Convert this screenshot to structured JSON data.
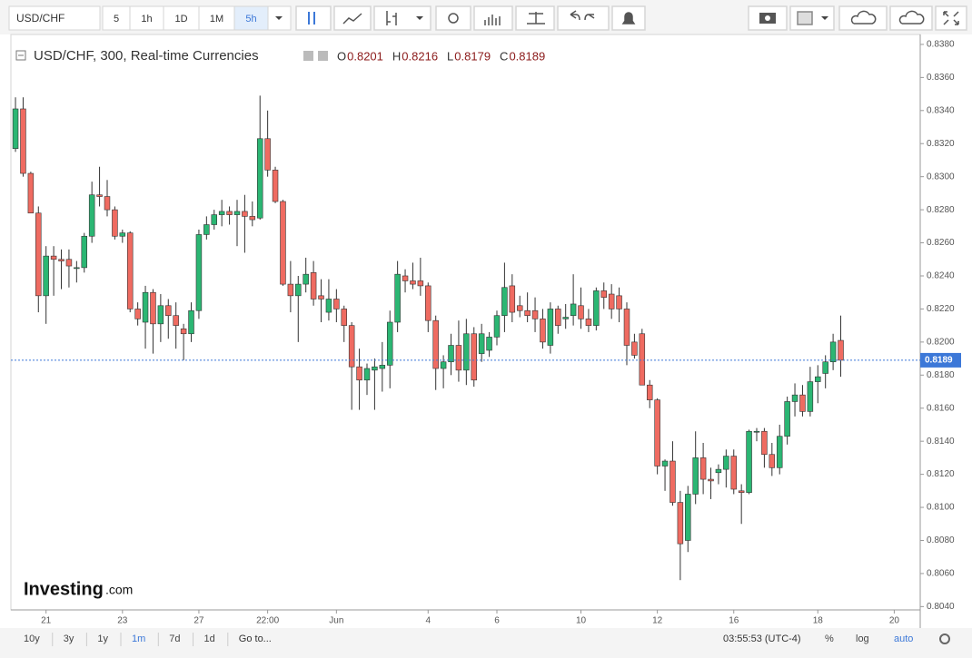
{
  "toolbar": {
    "symbol": "USD/CHF",
    "intervals": [
      "5",
      "1h",
      "1D",
      "1M",
      "5h"
    ]
  },
  "chart_data": {
    "type": "candlestick",
    "title": "USD/CHF, 300, Real-time Currencies",
    "ohlc_letters": [
      "O",
      "H",
      "L",
      "C"
    ],
    "up_color": "#2bb673",
    "down_color": "#ef6b61",
    "wick_color": "#333333",
    "price_line_color": "#3c78d8",
    "watermark": [
      "Investing",
      ".com"
    ],
    "open": [
      0.8317,
      0.8341,
      0.8302,
      0.8278,
      0.8228,
      0.8252,
      0.825,
      0.825,
      0.8245,
      0.8245,
      0.8264,
      0.8289,
      0.8288,
      0.828,
      0.8264,
      0.8266,
      0.822,
      0.8212,
      0.823,
      0.8211,
      0.8222,
      0.8216,
      0.8208,
      0.8205,
      0.8219,
      0.8265,
      0.8271,
      0.8277,
      0.8279,
      0.8277,
      0.8279,
      0.8276,
      0.8275,
      0.8323,
      0.8304,
      0.8285,
      0.8235,
      0.8228,
      0.8235,
      0.8242,
      0.8228,
      0.8218,
      0.8226,
      0.822,
      0.821,
      0.8185,
      0.8177,
      0.8183,
      0.8184,
      0.8186,
      0.8212,
      0.824,
      0.8237,
      0.8237,
      0.8234,
      0.8213,
      0.8184,
      0.8188,
      0.8198,
      0.8183,
      0.8205,
      0.8193,
      0.8195,
      0.8203,
      0.8216,
      0.8234,
      0.8222,
      0.8219,
      0.8219,
      0.8214,
      0.8198,
      0.822,
      0.8214,
      0.8216,
      0.8222,
      0.8214,
      0.821,
      0.8231,
      0.8229,
      0.8228,
      0.822,
      0.82,
      0.8205,
      0.8174,
      0.8165,
      0.8125,
      0.8128,
      0.8103,
      0.808,
      0.8108,
      0.813,
      0.8117,
      0.8121,
      0.8123,
      0.8131,
      0.811,
      0.8109,
      0.8146,
      0.8146,
      0.8132,
      0.8124,
      0.8143,
      0.8164,
      0.8168,
      0.8158,
      0.8176,
      0.8181,
      0.8188,
      0.8201
    ],
    "high": [
      0.8348,
      0.8348,
      0.8303,
      0.8282,
      0.8258,
      0.8258,
      0.8256,
      0.8256,
      0.8249,
      0.8266,
      0.8297,
      0.8306,
      0.8298,
      0.8282,
      0.8268,
      0.8267,
      0.8224,
      0.8234,
      0.8232,
      0.8229,
      0.8226,
      0.8224,
      0.8211,
      0.8224,
      0.8268,
      0.8276,
      0.828,
      0.8286,
      0.8282,
      0.8286,
      0.8289,
      0.8285,
      0.8349,
      0.834,
      0.8306,
      0.8286,
      0.8249,
      0.824,
      0.8251,
      0.8249,
      0.8238,
      0.8238,
      0.8232,
      0.8222,
      0.8212,
      0.8196,
      0.8187,
      0.819,
      0.82,
      0.8219,
      0.8249,
      0.8244,
      0.8248,
      0.8251,
      0.8236,
      0.8216,
      0.8192,
      0.8205,
      0.8213,
      0.8214,
      0.8209,
      0.8211,
      0.8206,
      0.8219,
      0.8248,
      0.8241,
      0.8228,
      0.823,
      0.8227,
      0.822,
      0.8224,
      0.8222,
      0.8223,
      0.8241,
      0.8233,
      0.822,
      0.8233,
      0.8236,
      0.8235,
      0.8233,
      0.8224,
      0.8205,
      0.8208,
      0.8177,
      0.8166,
      0.8129,
      0.814,
      0.811,
      0.8113,
      0.8146,
      0.8139,
      0.8124,
      0.8126,
      0.8135,
      0.8135,
      0.8114,
      0.8147,
      0.8148,
      0.8148,
      0.8139,
      0.815,
      0.8167,
      0.8175,
      0.8174,
      0.8185,
      0.8186,
      0.8192,
      0.8205,
      0.8216
    ],
    "low": [
      0.8315,
      0.83,
      0.8278,
      0.8218,
      0.8211,
      0.8228,
      0.8232,
      0.8233,
      0.8236,
      0.8242,
      0.826,
      0.8282,
      0.8276,
      0.8262,
      0.826,
      0.8218,
      0.821,
      0.8196,
      0.8193,
      0.82,
      0.8202,
      0.8196,
      0.8189,
      0.82,
      0.8214,
      0.8262,
      0.8268,
      0.827,
      0.8271,
      0.8258,
      0.8254,
      0.827,
      0.8274,
      0.83,
      0.8284,
      0.8234,
      0.8218,
      0.82,
      0.823,
      0.8222,
      0.8212,
      0.8213,
      0.8212,
      0.82,
      0.8159,
      0.8159,
      0.8168,
      0.8159,
      0.817,
      0.8172,
      0.8206,
      0.823,
      0.8232,
      0.8228,
      0.8206,
      0.8171,
      0.8172,
      0.818,
      0.8176,
      0.8174,
      0.8173,
      0.8188,
      0.8191,
      0.8198,
      0.8206,
      0.8212,
      0.8215,
      0.8212,
      0.8206,
      0.8196,
      0.8193,
      0.8205,
      0.8208,
      0.821,
      0.8208,
      0.8206,
      0.8207,
      0.822,
      0.8214,
      0.8212,
      0.8186,
      0.819,
      0.8174,
      0.816,
      0.812,
      0.811,
      0.8101,
      0.8056,
      0.8073,
      0.8102,
      0.8108,
      0.8105,
      0.8114,
      0.8112,
      0.8108,
      0.809,
      0.8108,
      0.814,
      0.8124,
      0.8119,
      0.812,
      0.8138,
      0.8155,
      0.8155,
      0.8155,
      0.8163,
      0.8172,
      0.8183,
      0.8179
    ],
    "close": [
      0.8341,
      0.8302,
      0.8278,
      0.8228,
      0.8252,
      0.825,
      0.8249,
      0.8246,
      0.8245,
      0.8264,
      0.8289,
      0.8288,
      0.828,
      0.8264,
      0.8266,
      0.822,
      0.8214,
      0.823,
      0.8211,
      0.8222,
      0.8216,
      0.821,
      0.8205,
      0.8219,
      0.8265,
      0.8271,
      0.8277,
      0.8279,
      0.8277,
      0.8279,
      0.8276,
      0.8274,
      0.8323,
      0.8304,
      0.8285,
      0.8235,
      0.8228,
      0.8235,
      0.8241,
      0.8226,
      0.8226,
      0.8226,
      0.822,
      0.821,
      0.8185,
      0.8177,
      0.8184,
      0.8185,
      0.8186,
      0.8212,
      0.8241,
      0.8237,
      0.8235,
      0.8234,
      0.8213,
      0.8184,
      0.8188,
      0.8198,
      0.8183,
      0.8205,
      0.8177,
      0.8205,
      0.8203,
      0.8216,
      0.8233,
      0.8218,
      0.8219,
      0.8216,
      0.8214,
      0.82,
      0.822,
      0.821,
      0.8215,
      0.8223,
      0.8214,
      0.821,
      0.8231,
      0.8227,
      0.822,
      0.822,
      0.8198,
      0.8192,
      0.8174,
      0.8165,
      0.8125,
      0.8128,
      0.8103,
      0.8078,
      0.8108,
      0.813,
      0.8117,
      0.8116,
      0.8123,
      0.8131,
      0.8111,
      0.8109,
      0.8146,
      0.8146,
      0.8132,
      0.8124,
      0.8143,
      0.8164,
      0.8168,
      0.8158,
      0.8176,
      0.8179,
      0.8188,
      0.82,
      0.8189
    ],
    "xlim": [
      -0.6,
      118.4
    ],
    "xticks": [
      {
        "value": 4,
        "label": "21"
      },
      {
        "value": 14,
        "label": "23"
      },
      {
        "value": 24,
        "label": "27"
      },
      {
        "value": 33,
        "label": "22:00"
      },
      {
        "value": 42,
        "label": "Jun"
      },
      {
        "value": 54,
        "label": "4"
      },
      {
        "value": 63,
        "label": "6"
      },
      {
        "value": 74,
        "label": "10"
      },
      {
        "value": 84,
        "label": "12"
      },
      {
        "value": 94,
        "label": "16"
      },
      {
        "value": 105,
        "label": "18"
      },
      {
        "value": 115,
        "label": "20"
      }
    ],
    "ylim": [
      0.8038,
      0.8386
    ],
    "yticks": [
      {
        "value": 0.804,
        "label": "0.8040"
      },
      {
        "value": 0.806,
        "label": "0.8060"
      },
      {
        "value": 0.808,
        "label": "0.8080"
      },
      {
        "value": 0.81,
        "label": "0.8100"
      },
      {
        "value": 0.812,
        "label": "0.8120"
      },
      {
        "value": 0.814,
        "label": "0.8140"
      },
      {
        "value": 0.816,
        "label": "0.8160"
      },
      {
        "value": 0.818,
        "label": "0.8180"
      },
      {
        "value": 0.82,
        "label": "0.8200"
      },
      {
        "value": 0.822,
        "label": "0.8220"
      },
      {
        "value": 0.824,
        "label": "0.8240"
      },
      {
        "value": 0.826,
        "label": "0.8260"
      },
      {
        "value": 0.828,
        "label": "0.8280"
      },
      {
        "value": 0.83,
        "label": "0.8300"
      },
      {
        "value": 0.832,
        "label": "0.8320"
      },
      {
        "value": 0.834,
        "label": "0.8340"
      },
      {
        "value": 0.836,
        "label": "0.8360"
      },
      {
        "value": 0.838,
        "label": "0.8380"
      }
    ]
  },
  "footer": {
    "ranges": [
      "10y",
      "3y",
      "1y",
      "1m",
      "7d",
      "1d"
    ],
    "goto": "Go to...",
    "clock": "03:55:53 (UTC-4)",
    "options": [
      "%",
      "log",
      "auto"
    ]
  }
}
